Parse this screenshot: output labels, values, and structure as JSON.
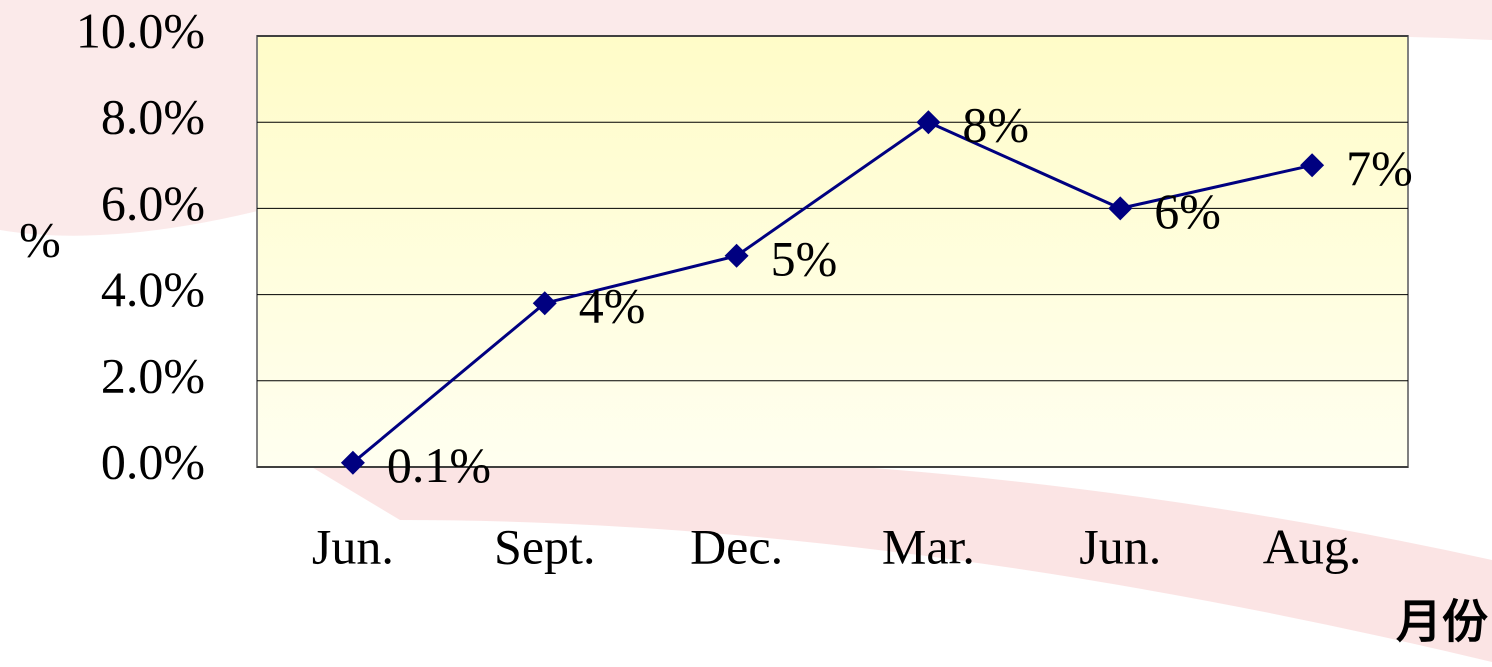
{
  "chart_data": {
    "type": "line",
    "categories": [
      "Jun.",
      "Sept.",
      "Dec.",
      "Mar.",
      "Jun.",
      "Aug."
    ],
    "series": [
      {
        "color": "#000080",
        "values": [
          0.1,
          3.8,
          4.9,
          8,
          6,
          7
        ],
        "value_labels": [
          "0.1%",
          "4%",
          "5%",
          "8%",
          "6%",
          "7%"
        ]
      }
    ],
    "y_label": "%",
    "x_label": "月份",
    "ylim": [
      0,
      10
    ],
    "yticks": [
      {
        "value": 0,
        "label": "0.0%"
      },
      {
        "value": 2,
        "label": "2.0%"
      },
      {
        "value": 4,
        "label": "4.0%"
      },
      {
        "value": 6,
        "label": "6.0%"
      },
      {
        "value": 8,
        "label": "8.0%"
      },
      {
        "value": 10,
        "label": "10.0%"
      }
    ],
    "grid": true
  }
}
